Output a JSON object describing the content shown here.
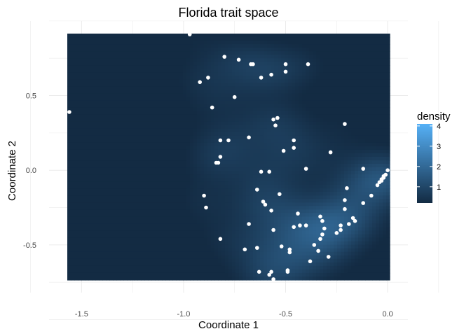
{
  "chart_data": {
    "type": "heatmap",
    "title": "Florida trait space",
    "xlabel": "Coordinate 1",
    "ylabel": "Coordinate 2",
    "xlim": [
      -1.57,
      0.01
    ],
    "ylim": [
      -0.735,
      0.915
    ],
    "x_ticks": [
      -1.5,
      -1.0,
      -0.5,
      0.0
    ],
    "x_tick_labels": [
      "-1.5",
      "-1.0",
      "-0.5",
      "0.0"
    ],
    "y_ticks": [
      -0.5,
      0.0,
      0.5
    ],
    "y_tick_labels": [
      "-0.5",
      "0.0",
      "0.5"
    ],
    "grid": true,
    "legend": {
      "title": "density",
      "position": "right",
      "range": [
        0.2,
        4.1
      ],
      "ticks": [
        1,
        2,
        3,
        4
      ],
      "tick_labels": [
        "1",
        "2",
        "3",
        "4"
      ],
      "low_color": "#132b43",
      "high_color": "#56b1f7"
    },
    "point_color": "#ffffff",
    "points": [
      [
        -0.97,
        0.91
      ],
      [
        -1.56,
        0.39
      ],
      [
        -0.8,
        0.76
      ],
      [
        -0.73,
        0.74
      ],
      [
        -0.67,
        0.71
      ],
      [
        -0.66,
        0.71
      ],
      [
        -0.5,
        0.71
      ],
      [
        -0.39,
        0.71
      ],
      [
        -0.5,
        0.66
      ],
      [
        -0.57,
        0.64
      ],
      [
        -0.62,
        0.62
      ],
      [
        -0.88,
        0.62
      ],
      [
        -0.92,
        0.59
      ],
      [
        -0.75,
        0.49
      ],
      [
        -0.86,
        0.42
      ],
      [
        -0.54,
        0.35
      ],
      [
        -0.56,
        0.34
      ],
      [
        -0.55,
        0.3
      ],
      [
        -0.21,
        0.31
      ],
      [
        -0.68,
        0.22
      ],
      [
        -0.82,
        0.2
      ],
      [
        -0.78,
        0.2
      ],
      [
        -0.46,
        0.2
      ],
      [
        -0.46,
        0.15
      ],
      [
        -0.51,
        0.13
      ],
      [
        -0.28,
        0.12
      ],
      [
        -0.82,
        0.09
      ],
      [
        -0.83,
        0.05
      ],
      [
        -0.84,
        0.05
      ],
      [
        -0.4,
        0.01
      ],
      [
        -0.62,
        -0.01
      ],
      [
        -0.58,
        -0.01
      ],
      [
        -0.12,
        0.01
      ],
      [
        -0.02,
        -0.04
      ],
      [
        -0.03,
        -0.06
      ],
      [
        -0.04,
        -0.08
      ],
      [
        -0.01,
        -0.03
      ],
      [
        -0.05,
        -0.1
      ],
      [
        0.0,
        0.0
      ],
      [
        -0.02,
        -0.05
      ],
      [
        -0.03,
        -0.07
      ],
      [
        -0.2,
        -0.12
      ],
      [
        -0.64,
        -0.13
      ],
      [
        -0.53,
        -0.16
      ],
      [
        -0.9,
        -0.17
      ],
      [
        -0.08,
        -0.17
      ],
      [
        -0.21,
        -0.2
      ],
      [
        -0.61,
        -0.21
      ],
      [
        -0.6,
        -0.23
      ],
      [
        -0.12,
        -0.22
      ],
      [
        -0.89,
        -0.25
      ],
      [
        -0.21,
        -0.26
      ],
      [
        -0.57,
        -0.27
      ],
      [
        -0.44,
        -0.29
      ],
      [
        -0.33,
        -0.31
      ],
      [
        -0.17,
        -0.32
      ],
      [
        -0.16,
        -0.34
      ],
      [
        -0.32,
        -0.34
      ],
      [
        -0.68,
        -0.36
      ],
      [
        -0.43,
        -0.37
      ],
      [
        -0.4,
        -0.37
      ],
      [
        -0.23,
        -0.37
      ],
      [
        -0.46,
        -0.38
      ],
      [
        -0.19,
        -0.36
      ],
      [
        -0.56,
        -0.4
      ],
      [
        -0.31,
        -0.39
      ],
      [
        -0.23,
        -0.4
      ],
      [
        -0.25,
        -0.42
      ],
      [
        -0.32,
        -0.43
      ],
      [
        -0.33,
        -0.46
      ],
      [
        -0.82,
        -0.46
      ],
      [
        -0.36,
        -0.5
      ],
      [
        -0.52,
        -0.51
      ],
      [
        -0.64,
        -0.52
      ],
      [
        -0.7,
        -0.53
      ],
      [
        -0.48,
        -0.53
      ],
      [
        -0.34,
        -0.54
      ],
      [
        -0.48,
        -0.55
      ],
      [
        -0.29,
        -0.58
      ],
      [
        -0.38,
        -0.61
      ],
      [
        -0.63,
        -0.68
      ],
      [
        -0.57,
        -0.68
      ],
      [
        -0.49,
        -0.67
      ],
      [
        -0.49,
        -0.68
      ],
      [
        -0.58,
        -0.7
      ],
      [
        -0.56,
        -0.73
      ]
    ]
  }
}
